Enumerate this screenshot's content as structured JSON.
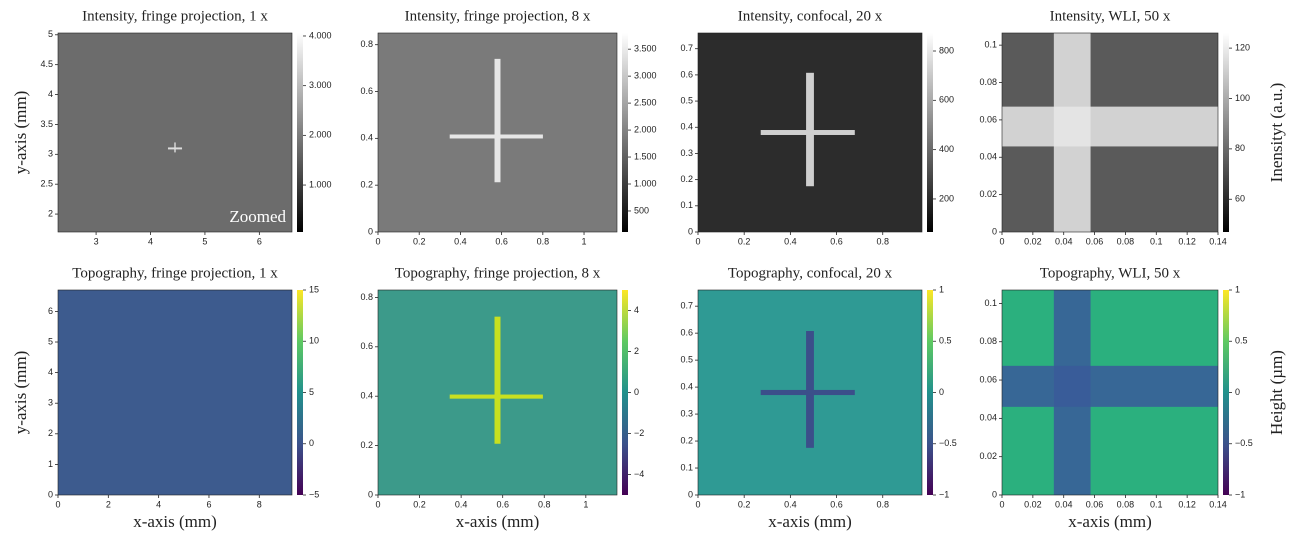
{
  "chart_data": [
    {
      "type": "image",
      "title": "Intensity, fringe projection, 1 x",
      "ylabel": "y-axis (mm)",
      "annotation": "Zoomed",
      "colormap": "gray",
      "xlim": [
        2.3,
        6.6
      ],
      "xticks": [
        3,
        4,
        5,
        6
      ],
      "ylim": [
        1.7,
        5.03
      ],
      "yticks": [
        2,
        2.5,
        3,
        3.5,
        4,
        4.5,
        5
      ],
      "clim": [
        55,
        4060
      ],
      "cticks": [
        {
          "value": 1000,
          "label": "1.000"
        },
        {
          "value": 2000,
          "label": "2.000"
        },
        {
          "value": 3000,
          "label": "3.000"
        },
        {
          "value": 4000,
          "label": "4.000"
        }
      ]
    },
    {
      "type": "image",
      "title": "Intensity, fringe projection, 8 x",
      "colormap": "gray",
      "xlim": [
        0,
        1.16
      ],
      "xticks": [
        0,
        0.2,
        0.4,
        0.6,
        0.8,
        1
      ],
      "ylim": [
        0,
        0.85
      ],
      "yticks": [
        0,
        0.2,
        0.4,
        0.6,
        0.8
      ],
      "clim": [
        110,
        3800
      ],
      "cticks": [
        500,
        {
          "value": 1000,
          "label": "1.000"
        },
        {
          "value": 1500,
          "label": "1.500"
        },
        {
          "value": 2000,
          "label": "2.000"
        },
        {
          "value": 2500,
          "label": "2.500"
        },
        {
          "value": 3000,
          "label": "3.000"
        },
        {
          "value": 3500,
          "label": "3.500"
        }
      ]
    },
    {
      "type": "image",
      "title": "Intensity, confocal, 20 x",
      "colormap": "gray",
      "xlim": [
        0,
        0.97
      ],
      "xticks": [
        0,
        0.2,
        0.4,
        0.6,
        0.8
      ],
      "ylim": [
        0,
        0.76
      ],
      "yticks": [
        0,
        0.1,
        0.2,
        0.3,
        0.4,
        0.5,
        0.6,
        0.7
      ],
      "clim": [
        66,
        873
      ],
      "cticks": [
        200,
        400,
        600,
        800
      ]
    },
    {
      "type": "image",
      "title": "Intensity, WLI, 50 x",
      "clabel": "Inensityt (a.u.)",
      "colormap": "gray",
      "xlim": [
        0,
        0.14
      ],
      "xticks": [
        0,
        0.02,
        0.04,
        0.06,
        0.08,
        0.1,
        0.12,
        0.14
      ],
      "ylim": [
        0,
        0.1065
      ],
      "yticks": [
        0,
        0.02,
        0.04,
        0.06,
        0.08,
        0.1
      ],
      "clim": [
        47,
        126
      ],
      "cticks": [
        60,
        80,
        100,
        120
      ]
    },
    {
      "type": "image",
      "title": "Topography, fringe projection, 1 x",
      "ylabel": "y-axis (mm)",
      "xlabel": "x-axis (mm)",
      "colormap": "viridis",
      "xlim": [
        0,
        9.3
      ],
      "xticks": [
        0,
        2,
        4,
        6,
        8
      ],
      "ylim": [
        0,
        6.7
      ],
      "yticks": [
        0,
        1,
        2,
        3,
        4,
        5,
        6
      ],
      "clim": [
        -5,
        15
      ],
      "cticks": [
        {
          "value": -5,
          "label": "−5"
        },
        0,
        5,
        10,
        15
      ]
    },
    {
      "type": "image",
      "title": "Topography, fringe projection, 8 x",
      "xlabel": "x-axis (mm)",
      "colormap": "viridis",
      "xlim": [
        0,
        1.15
      ],
      "xticks": [
        0,
        0.2,
        0.4,
        0.6,
        0.8,
        1
      ],
      "ylim": [
        0,
        0.83
      ],
      "yticks": [
        0,
        0.2,
        0.4,
        0.6,
        0.8
      ],
      "clim": [
        -5,
        5
      ],
      "cticks": [
        {
          "value": -4,
          "label": "−4"
        },
        {
          "value": -2,
          "label": "−2"
        },
        0,
        2,
        4
      ]
    },
    {
      "type": "image",
      "title": "Topography, confocal, 20 x",
      "xlabel": "x-axis (mm)",
      "colormap": "viridis",
      "xlim": [
        0,
        0.97
      ],
      "xticks": [
        0,
        0.2,
        0.4,
        0.6,
        0.8
      ],
      "ylim": [
        0,
        0.76
      ],
      "yticks": [
        0,
        0.1,
        0.2,
        0.3,
        0.4,
        0.5,
        0.6,
        0.7
      ],
      "clim": [
        -1,
        1
      ],
      "cticks": [
        {
          "value": -1,
          "label": "−1"
        },
        {
          "value": -0.5,
          "label": "−0.5"
        },
        0,
        0.5,
        1
      ]
    },
    {
      "type": "image",
      "title": "Topography, WLI, 50 x",
      "xlabel": "x-axis (mm)",
      "clabel": "Height (µm)",
      "colormap": "viridis",
      "xlim": [
        0,
        0.14
      ],
      "xticks": [
        0,
        0.02,
        0.04,
        0.06,
        0.08,
        0.1,
        0.12,
        0.14
      ],
      "ylim": [
        0,
        0.107
      ],
      "yticks": [
        0,
        0.02,
        0.04,
        0.06,
        0.08,
        0.1
      ],
      "clim": [
        -1,
        1
      ],
      "cticks": [
        {
          "value": -1,
          "label": "−1"
        },
        {
          "value": -0.5,
          "label": "−0.5"
        },
        0,
        0.5,
        1
      ]
    }
  ]
}
